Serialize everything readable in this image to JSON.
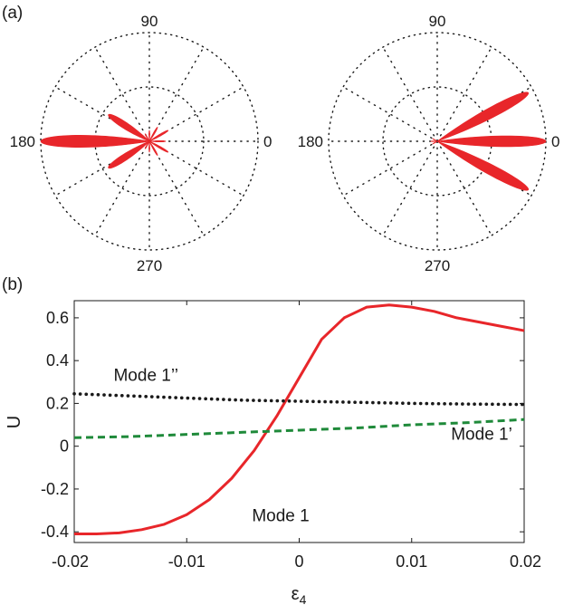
{
  "panel_labels": {
    "a": "(a)",
    "b": "(b)"
  },
  "chart_data": [
    {
      "type": "polar",
      "angle_labels": [
        "90",
        "180",
        "0",
        "270"
      ],
      "angle_label_degrees": [
        90,
        180,
        0,
        270
      ],
      "radial_ticks": [
        0.5,
        1.0
      ],
      "spokes_every_deg": 30,
      "grid": "dotted",
      "fill_color": "#e8262a",
      "lobes": [
        {
          "angle_deg": 180,
          "r": 1.0,
          "width_deg": 10
        },
        {
          "angle_deg": 147,
          "r": 0.45,
          "width_deg": 12
        },
        {
          "angle_deg": 213,
          "r": 0.45,
          "width_deg": 12
        },
        {
          "angle_deg": 90,
          "r": 0.1,
          "width_deg": 8
        },
        {
          "angle_deg": 270,
          "r": 0.1,
          "width_deg": 8
        },
        {
          "angle_deg": 120,
          "r": 0.08,
          "width_deg": 8
        },
        {
          "angle_deg": 240,
          "r": 0.08,
          "width_deg": 8
        },
        {
          "angle_deg": 60,
          "r": 0.15,
          "width_deg": 8
        },
        {
          "angle_deg": 300,
          "r": 0.15,
          "width_deg": 8
        },
        {
          "angle_deg": 30,
          "r": 0.2,
          "width_deg": 8
        },
        {
          "angle_deg": 330,
          "r": 0.2,
          "width_deg": 8
        },
        {
          "angle_deg": 0,
          "r": 0.15,
          "width_deg": 7
        }
      ]
    },
    {
      "type": "polar",
      "angle_labels": [
        "90",
        "180",
        "0",
        "270"
      ],
      "angle_label_degrees": [
        90,
        180,
        0,
        270
      ],
      "radial_ticks": [
        0.5,
        1.0
      ],
      "spokes_every_deg": 30,
      "grid": "dotted",
      "fill_color": "#e8262a",
      "lobes": [
        {
          "angle_deg": 0,
          "r": 1.0,
          "width_deg": 9
        },
        {
          "angle_deg": 28,
          "r": 0.95,
          "width_deg": 9
        },
        {
          "angle_deg": 332,
          "r": 0.95,
          "width_deg": 9
        },
        {
          "angle_deg": 180,
          "r": 0.06,
          "width_deg": 8
        },
        {
          "angle_deg": 150,
          "r": 0.05,
          "width_deg": 8
        },
        {
          "angle_deg": 210,
          "r": 0.05,
          "width_deg": 8
        }
      ]
    },
    {
      "type": "line",
      "xlabel": "ε4",
      "ylabel": "U",
      "xlim": [
        -0.02,
        0.02
      ],
      "ylim": [
        -0.45,
        0.68
      ],
      "xticks": [
        -0.02,
        -0.01,
        0,
        0.01,
        0.02
      ],
      "xtick_labels": [
        "-0.02",
        "-0.01",
        "0",
        "0.01",
        "0.02"
      ],
      "yticks": [
        -0.4,
        -0.2,
        0,
        0.2,
        0.4,
        0.6
      ],
      "ytick_labels": [
        "-0.4",
        "-0.2",
        "0",
        "0.2",
        "0.4",
        "0.6"
      ],
      "grid": false,
      "series": [
        {
          "name": "Mode 1",
          "color": "#e8262a",
          "style": "solid",
          "x": [
            -0.02,
            -0.018,
            -0.016,
            -0.014,
            -0.012,
            -0.01,
            -0.008,
            -0.006,
            -0.004,
            -0.002,
            0,
            0.002,
            0.004,
            0.006,
            0.008,
            0.01,
            0.012,
            0.014,
            0.016,
            0.018,
            0.02
          ],
          "y": [
            -0.41,
            -0.41,
            -0.405,
            -0.39,
            -0.365,
            -0.32,
            -0.25,
            -0.15,
            -0.02,
            0.14,
            0.32,
            0.5,
            0.6,
            0.65,
            0.66,
            0.65,
            0.63,
            0.6,
            0.58,
            0.56,
            0.54
          ]
        },
        {
          "name": "Mode 1’",
          "color": "#1f8a3a",
          "style": "dashed",
          "x": [
            -0.02,
            -0.015,
            -0.01,
            -0.005,
            0,
            0.005,
            0.01,
            0.015,
            0.02
          ],
          "y": [
            0.04,
            0.045,
            0.055,
            0.065,
            0.075,
            0.085,
            0.1,
            0.11,
            0.125
          ]
        },
        {
          "name": "Mode 1’’",
          "color": "#1a1a1a",
          "style": "dotted",
          "x": [
            -0.02,
            -0.015,
            -0.01,
            -0.005,
            0,
            0.005,
            0.01,
            0.015,
            0.02
          ],
          "y": [
            0.245,
            0.235,
            0.225,
            0.215,
            0.21,
            0.205,
            0.2,
            0.197,
            0.195
          ]
        }
      ],
      "annotations": [
        {
          "text": "Mode 1’’",
          "x": -0.0165,
          "y": 0.305
        },
        {
          "text": "Mode 1’",
          "x": 0.0135,
          "y": 0.03
        },
        {
          "text": "Mode 1",
          "x": -0.0042,
          "y": -0.35
        }
      ]
    }
  ]
}
